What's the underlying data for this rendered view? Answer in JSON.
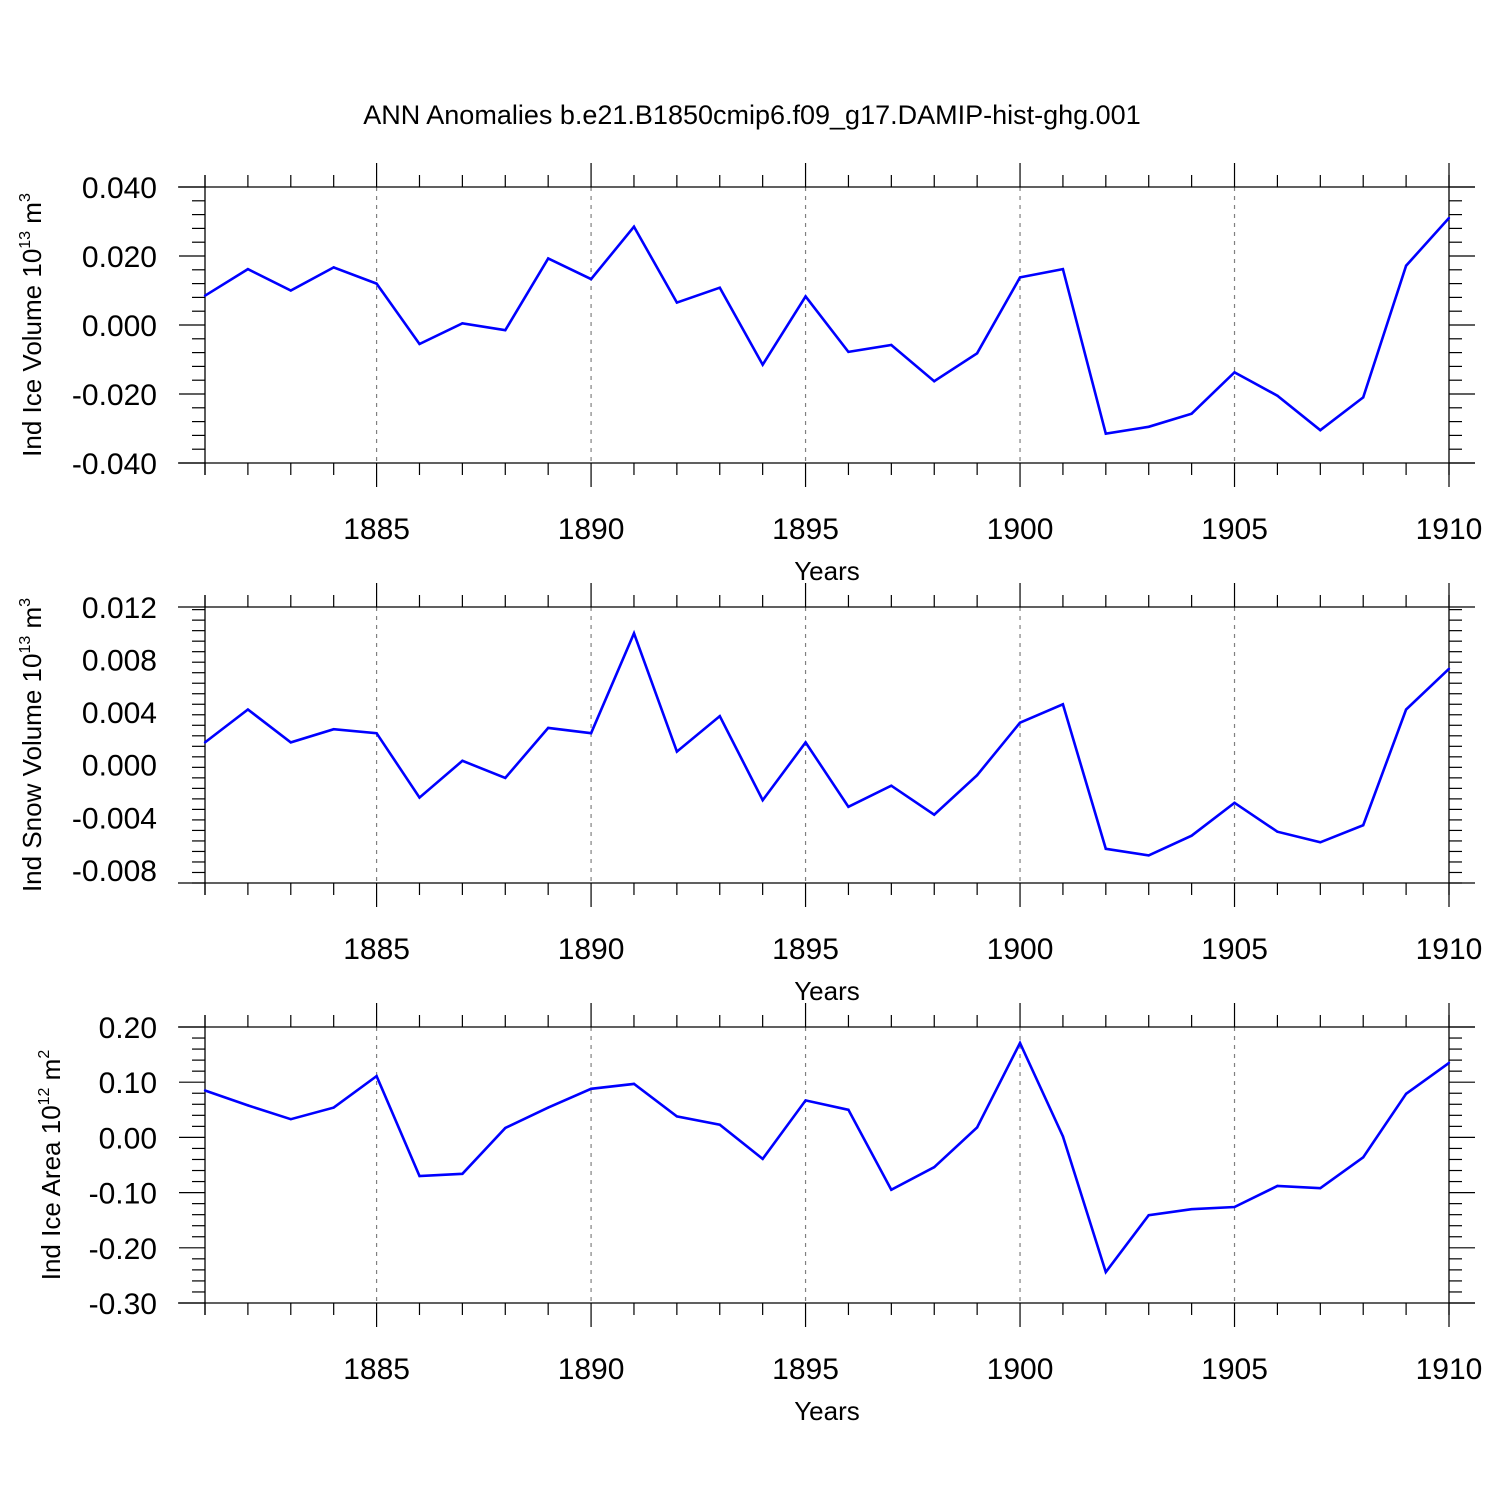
{
  "title": "ANN Anomalies b.e21.B1850cmip6.f09_g17.DAMIP-hist-ghg.001",
  "colors": {
    "line": "#0000ff",
    "axis": "#000000",
    "grid": "#808080"
  },
  "chart_data": [
    {
      "type": "line",
      "ylabel": {
        "text": "Ind Ice Volume 10",
        "exp": "13",
        "unit": " m",
        "unit_exp": "3"
      },
      "xlabel": "Years",
      "xlim": [
        1881,
        1910
      ],
      "ylim": [
        -0.04,
        0.04
      ],
      "xticks": [
        1885,
        1890,
        1895,
        1900,
        1905,
        1910
      ],
      "yticks": [
        -0.04,
        -0.02,
        0.0,
        0.02,
        0.04
      ],
      "ytick_labels": [
        "-0.040",
        "-0.020",
        "0.000",
        "0.020",
        "0.040"
      ],
      "grid": "vertical dashed at major x ticks",
      "x": [
        1881,
        1882,
        1883,
        1884,
        1885,
        1886,
        1887,
        1888,
        1889,
        1890,
        1891,
        1892,
        1893,
        1894,
        1895,
        1896,
        1897,
        1898,
        1899,
        1900,
        1901,
        1902,
        1903,
        1904,
        1905,
        1906,
        1907,
        1908,
        1909,
        1910
      ],
      "values": [
        0.0085,
        0.0162,
        0.01,
        0.0167,
        0.012,
        -0.0055,
        0.0005,
        -0.0015,
        0.0193,
        0.0133,
        0.0285,
        0.0065,
        0.0108,
        -0.0115,
        0.0083,
        -0.0078,
        -0.0058,
        -0.0163,
        -0.0082,
        0.0138,
        0.0162,
        -0.0315,
        -0.0295,
        -0.0257,
        -0.0137,
        -0.0205,
        -0.0305,
        -0.021,
        0.0172,
        0.031
      ]
    },
    {
      "type": "line",
      "ylabel": {
        "text": "Ind Snow Volume 10",
        "exp": "13",
        "unit": " m",
        "unit_exp": "3"
      },
      "xlabel": "Years",
      "xlim": [
        1881,
        1910
      ],
      "ylim": [
        -0.009,
        0.012
      ],
      "xticks": [
        1885,
        1890,
        1895,
        1900,
        1905,
        1910
      ],
      "yticks": [
        -0.008,
        -0.004,
        0.0,
        0.004,
        0.008,
        0.012
      ],
      "ytick_labels": [
        "-0.008",
        "-0.004",
        "0.000",
        "0.004",
        "0.008",
        "0.012"
      ],
      "grid": "vertical dashed at major x ticks",
      "x": [
        1881,
        1882,
        1883,
        1884,
        1885,
        1886,
        1887,
        1888,
        1889,
        1890,
        1891,
        1892,
        1893,
        1894,
        1895,
        1896,
        1897,
        1898,
        1899,
        1900,
        1901,
        1902,
        1903,
        1904,
        1905,
        1906,
        1907,
        1908,
        1909,
        1910
      ],
      "values": [
        0.0017,
        0.0042,
        0.0017,
        0.0027,
        0.0024,
        -0.0025,
        0.0003,
        -0.001,
        0.0028,
        0.0024,
        0.01,
        0.001,
        0.0037,
        -0.0027,
        0.0017,
        -0.0032,
        -0.0016,
        -0.0038,
        -0.0008,
        0.0032,
        0.0046,
        -0.0064,
        -0.0069,
        -0.0054,
        -0.0029,
        -0.0051,
        -0.0059,
        -0.0046,
        0.0042,
        0.0073
      ]
    },
    {
      "type": "line",
      "ylabel": {
        "text": "Ind Ice Area 10",
        "exp": "12",
        "unit": " m",
        "unit_exp": "2"
      },
      "xlabel": "Years",
      "xlim": [
        1881,
        1910
      ],
      "ylim": [
        -0.3,
        0.2
      ],
      "xticks": [
        1885,
        1890,
        1895,
        1900,
        1905,
        1910
      ],
      "yticks": [
        -0.3,
        -0.2,
        -0.1,
        0.0,
        0.1,
        0.2
      ],
      "ytick_labels": [
        "-0.30",
        "-0.20",
        "-0.10",
        "0.00",
        "0.10",
        "0.20"
      ],
      "grid": "vertical dashed at major x ticks",
      "x": [
        1881,
        1882,
        1883,
        1884,
        1885,
        1886,
        1887,
        1888,
        1889,
        1890,
        1891,
        1892,
        1893,
        1894,
        1895,
        1896,
        1897,
        1898,
        1899,
        1900,
        1901,
        1902,
        1903,
        1904,
        1905,
        1906,
        1907,
        1908,
        1909,
        1910
      ],
      "values": [
        0.085,
        0.058,
        0.033,
        0.054,
        0.111,
        -0.07,
        -0.066,
        0.017,
        0.054,
        0.088,
        0.097,
        0.038,
        0.023,
        -0.039,
        0.067,
        0.05,
        -0.095,
        -0.054,
        0.018,
        0.171,
        0.002,
        -0.244,
        -0.141,
        -0.13,
        -0.126,
        -0.088,
        -0.092,
        -0.036,
        0.079,
        0.135
      ]
    }
  ]
}
